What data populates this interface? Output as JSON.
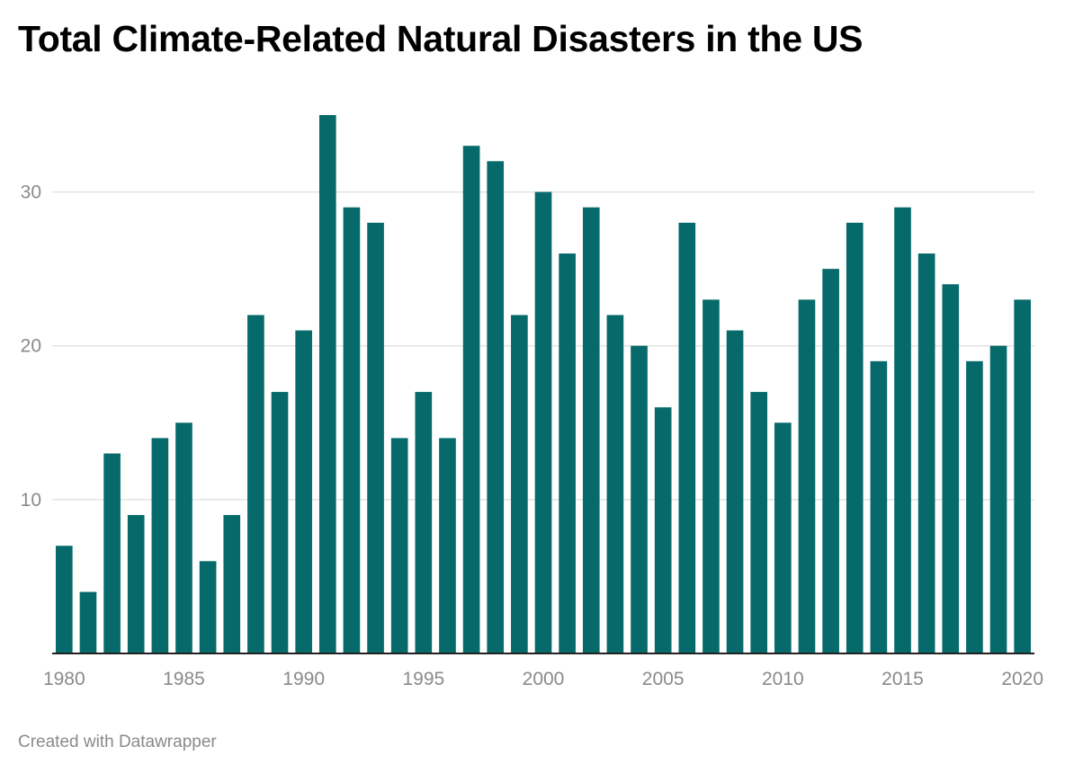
{
  "chart_data": {
    "type": "bar",
    "title": "Total Climate-Related Natural Disasters in the US",
    "xlabel": "",
    "ylabel": "",
    "categories": [
      "1980",
      "1981",
      "1982",
      "1983",
      "1984",
      "1985",
      "1986",
      "1987",
      "1988",
      "1989",
      "1990",
      "1991",
      "1992",
      "1993",
      "1994",
      "1995",
      "1996",
      "1997",
      "1998",
      "1999",
      "2000",
      "2001",
      "2002",
      "2003",
      "2004",
      "2005",
      "2006",
      "2007",
      "2008",
      "2009",
      "2010",
      "2011",
      "2012",
      "2013",
      "2014",
      "2015",
      "2016",
      "2017",
      "2018",
      "2019",
      "2020"
    ],
    "values": [
      7,
      4,
      13,
      9,
      14,
      15,
      6,
      9,
      22,
      17,
      21,
      35,
      29,
      28,
      14,
      17,
      14,
      33,
      32,
      22,
      30,
      26,
      29,
      22,
      20,
      16,
      28,
      23,
      21,
      17,
      15,
      23,
      25,
      28,
      19,
      29,
      26,
      24,
      19,
      20,
      23
    ],
    "ylim": [
      0,
      35
    ],
    "yticks": [
      10,
      20,
      30
    ],
    "xticks": [
      "1980",
      "1985",
      "1990",
      "1995",
      "2000",
      "2005",
      "2010",
      "2015",
      "2020"
    ],
    "grid": true,
    "bar_color": "#076a6a"
  },
  "footer": {
    "credit": "Created with Datawrapper"
  }
}
